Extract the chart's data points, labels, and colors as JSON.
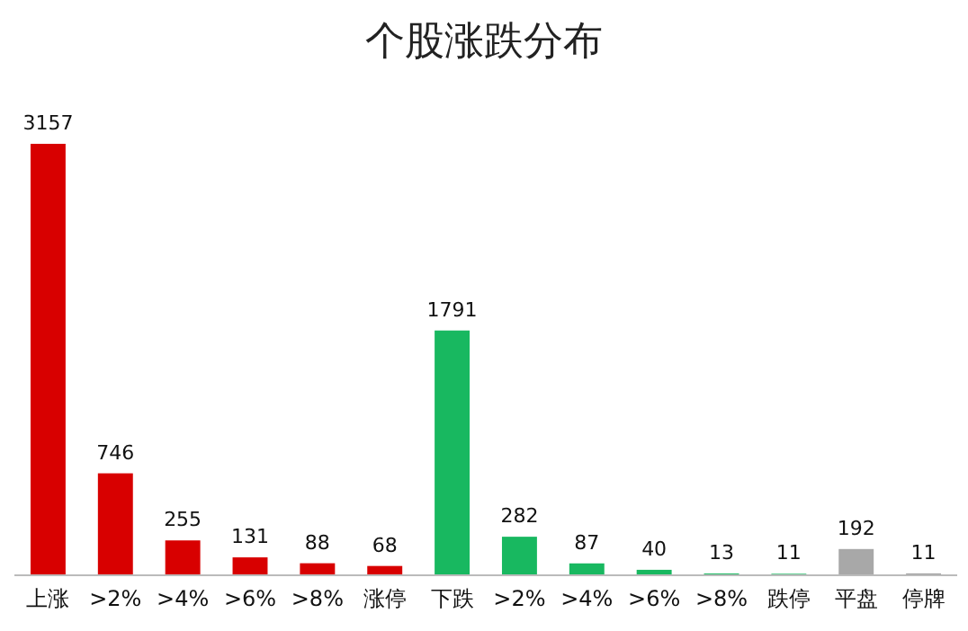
{
  "chart_data": {
    "type": "bar",
    "title": "个股涨跌分布",
    "categories": [
      "上涨",
      ">2%",
      ">4%",
      ">6%",
      ">8%",
      "涨停",
      "下跌",
      ">2%",
      ">4%",
      ">6%",
      ">8%",
      "跌停",
      "平盘",
      "停牌"
    ],
    "values": [
      3157,
      746,
      255,
      131,
      88,
      68,
      1791,
      282,
      87,
      40,
      13,
      11,
      192,
      11
    ],
    "colors": [
      "#d80000",
      "#d80000",
      "#d80000",
      "#d80000",
      "#d80000",
      "#d80000",
      "#18b860",
      "#18b860",
      "#18b860",
      "#18b860",
      "#18b860",
      "#18b860",
      "#a8a8a8",
      "#707070"
    ],
    "data_labels": true
  }
}
